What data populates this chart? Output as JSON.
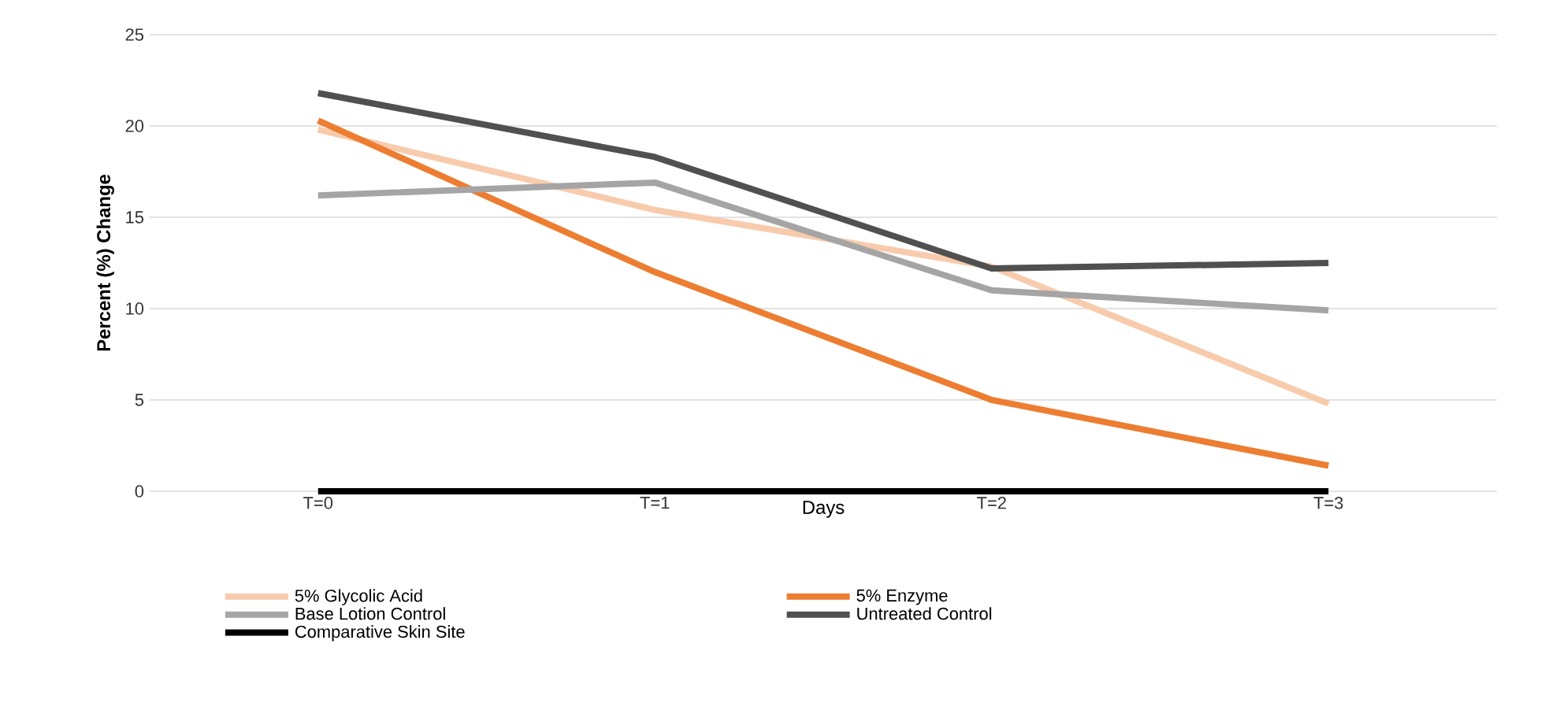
{
  "chart_data": {
    "type": "line",
    "xlabel": "Days",
    "ylabel": "Percent (%) Change",
    "categories": [
      "T=0",
      "T=1",
      "T=2",
      "T=3"
    ],
    "series": [
      {
        "name": "5% Glycolic Acid",
        "color": "#f8cbad",
        "values": [
          19.8,
          15.4,
          12.3,
          4.8
        ]
      },
      {
        "name": "5% Enzyme",
        "color": "#ed7d31",
        "values": [
          20.3,
          12.0,
          5.0,
          1.4
        ]
      },
      {
        "name": "Base Lotion Control",
        "color": "#a5a5a5",
        "values": [
          16.2,
          16.9,
          11.0,
          9.9
        ]
      },
      {
        "name": "Untreated Control",
        "color": "#505050",
        "values": [
          21.8,
          18.3,
          12.2,
          12.5
        ]
      },
      {
        "name": "Comparative Skin Site",
        "color": "#000000",
        "values": [
          0,
          0,
          0,
          0
        ]
      }
    ],
    "ylim": [
      0,
      25
    ],
    "yticks": [
      0,
      5,
      10,
      15,
      20,
      25
    ],
    "grid": "y",
    "legend": "bottom",
    "marker": "none",
    "line_style": "solid"
  }
}
